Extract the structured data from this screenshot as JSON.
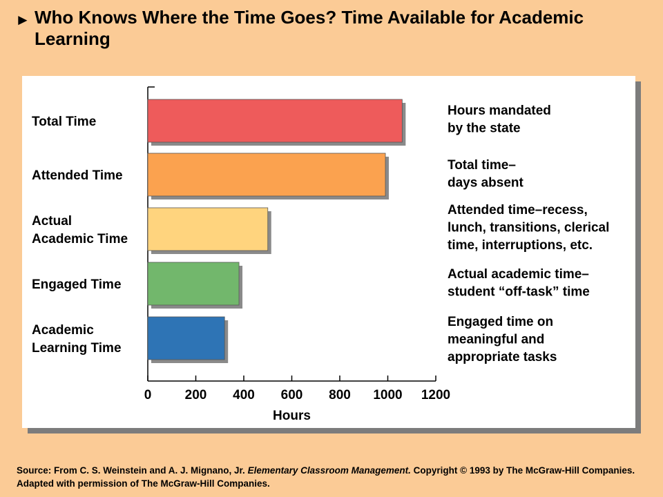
{
  "header": {
    "arrow": "►",
    "title": "Who Knows Where the Time Goes? Time Available for Academic Learning"
  },
  "chart_data": {
    "type": "bar",
    "orientation": "horizontal",
    "categories": [
      {
        "label_lines": [
          "Total Time"
        ],
        "value": 1060,
        "color": "#EE5B5B",
        "note_lines": [
          "Hours mandated",
          "by the state"
        ]
      },
      {
        "label_lines": [
          "Attended Time"
        ],
        "value": 990,
        "color": "#FBA24F",
        "note_lines": [
          "Total time–",
          "days absent"
        ]
      },
      {
        "label_lines": [
          "Actual",
          "Academic Time"
        ],
        "value": 500,
        "color": "#FFD47E",
        "note_lines": [
          "Attended time–recess,",
          "lunch, transitions, clerical",
          "time, interruptions, etc."
        ]
      },
      {
        "label_lines": [
          "Engaged Time"
        ],
        "value": 380,
        "color": "#72B76C",
        "note_lines": [
          "Actual academic time–",
          "student “off-task” time"
        ]
      },
      {
        "label_lines": [
          "Academic",
          "Learning Time"
        ],
        "value": 320,
        "color": "#2E74B5",
        "note_lines": [
          "Engaged time on",
          "meaningful and",
          "appropriate tasks"
        ]
      }
    ],
    "xlabel": "Hours",
    "xlim": [
      0,
      1200
    ],
    "xticks": [
      "0",
      "200",
      "400",
      "600",
      "800",
      "1000",
      "1200"
    ],
    "grid": false
  },
  "source": {
    "prefix": "Source: From C. S. Weinstein and A. J. Mignano, Jr. ",
    "book": "Elementary Classroom Management.",
    "suffix": " Copyright © 1993 by The McGraw-Hill Companies. Adapted with permission of The McGraw-Hill Companies."
  }
}
